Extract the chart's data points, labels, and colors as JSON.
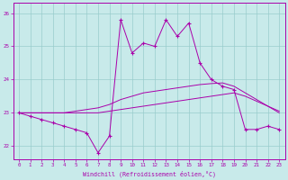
{
  "line1_x": [
    0,
    1,
    2,
    3,
    4,
    5,
    6,
    7,
    8,
    9,
    10,
    11,
    12,
    13,
    14,
    15,
    16,
    17,
    18,
    19,
    20,
    21,
    22,
    23
  ],
  "line1_y": [
    23.0,
    22.9,
    22.8,
    22.7,
    22.6,
    22.5,
    22.4,
    21.8,
    22.3,
    25.8,
    24.8,
    25.1,
    25.0,
    25.8,
    25.3,
    25.7,
    24.5,
    24.0,
    23.8,
    23.7,
    22.5,
    22.5,
    22.6,
    22.5
  ],
  "line2_x": [
    0,
    1,
    2,
    3,
    4,
    5,
    6,
    7,
    8,
    9,
    10,
    11,
    12,
    13,
    14,
    15,
    16,
    17,
    18,
    19,
    20,
    21,
    22,
    23
  ],
  "line2_y": [
    23.0,
    23.0,
    23.0,
    23.0,
    23.0,
    23.05,
    23.1,
    23.15,
    23.25,
    23.4,
    23.5,
    23.6,
    23.65,
    23.7,
    23.75,
    23.8,
    23.85,
    23.88,
    23.9,
    23.8,
    23.6,
    23.4,
    23.2,
    23.0
  ],
  "line3_x": [
    0,
    1,
    2,
    3,
    4,
    5,
    6,
    7,
    8,
    9,
    10,
    11,
    12,
    13,
    14,
    15,
    16,
    17,
    18,
    19,
    20,
    21,
    22,
    23
  ],
  "line3_y": [
    23.0,
    23.0,
    23.0,
    23.0,
    23.0,
    23.0,
    23.0,
    23.0,
    23.05,
    23.1,
    23.15,
    23.2,
    23.25,
    23.3,
    23.35,
    23.4,
    23.45,
    23.5,
    23.55,
    23.6,
    23.5,
    23.35,
    23.2,
    23.05
  ],
  "bg_color": "#c8eaea",
  "line_color": "#aa00aa",
  "grid_color": "#99cccc",
  "xlabel": "Windchill (Refroidissement éolien,°C)",
  "ylim": [
    21.6,
    26.3
  ],
  "xlim": [
    -0.5,
    23.5
  ],
  "yticks": [
    22,
    23,
    24,
    25,
    26
  ],
  "xticks": [
    0,
    1,
    2,
    3,
    4,
    5,
    6,
    7,
    8,
    9,
    10,
    11,
    12,
    13,
    14,
    15,
    16,
    17,
    18,
    19,
    20,
    21,
    22,
    23
  ]
}
